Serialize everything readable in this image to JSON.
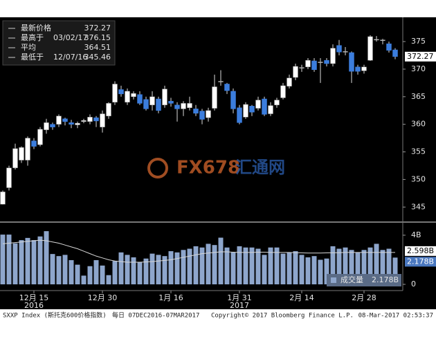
{
  "chart_data": [
    {
      "type": "candlestick",
      "categories": [
        null,
        null,
        null,
        null,
        null,
        "12月 15",
        null,
        null,
        null,
        null,
        null,
        null,
        null,
        null,
        null,
        null,
        "12月 30",
        null,
        null,
        null,
        null,
        null,
        null,
        null,
        null,
        null,
        null,
        "1月 16",
        null,
        null,
        null,
        null,
        null,
        null,
        null,
        null,
        null,
        null,
        "1月 31",
        null,
        null,
        null,
        null,
        null,
        null,
        null,
        null,
        null,
        "2月 14",
        null,
        null,
        null,
        null,
        null,
        null,
        null,
        null,
        null,
        "2月 28",
        null,
        null,
        null,
        null,
        null
      ],
      "category_years": [
        null,
        null,
        null,
        null,
        null,
        "2016",
        null,
        null,
        null,
        null,
        null,
        null,
        null,
        null,
        null,
        null,
        null,
        null,
        null,
        null,
        null,
        null,
        null,
        null,
        null,
        null,
        null,
        null,
        null,
        null,
        null,
        null,
        null,
        null,
        null,
        null,
        null,
        null,
        "2017",
        null,
        null,
        null,
        null,
        null,
        null,
        null,
        null,
        null,
        null,
        null,
        null,
        null,
        null,
        null,
        null,
        null,
        null,
        null,
        null,
        null,
        null,
        null,
        null,
        null
      ],
      "open": [
        345.5,
        348.5,
        352.1,
        353.5,
        353.5,
        357,
        356.3,
        359,
        360,
        360,
        361,
        360.3,
        359.9,
        360.5,
        360.5,
        361.2,
        359.5,
        361.5,
        364,
        366.3,
        364,
        365,
        365.4,
        364.5,
        363.5,
        364.6,
        363.5,
        364.2,
        363.5,
        362.8,
        363,
        362.8,
        362.4,
        361.2,
        362.9,
        367.7,
        367.3,
        366,
        363,
        361.3,
        363.3,
        362.9,
        364.6,
        361.9,
        363.5,
        364.8,
        366.9,
        368.5,
        370.2,
        370.4,
        371.5,
        371.2,
        371.6,
        371,
        374.3,
        373.1,
        373,
        370.4,
        369.7,
        371.6,
        375.3,
        375.2,
        374.6,
        373.5
      ],
      "high": [
        348,
        352.5,
        356.5,
        356,
        357.8,
        357.5,
        359.5,
        361,
        360.3,
        361.8,
        361.2,
        360.8,
        360.5,
        361,
        361.8,
        361.5,
        362.5,
        364,
        367.8,
        367,
        366.5,
        366,
        366,
        365,
        366,
        365,
        367,
        364.8,
        364,
        364.2,
        365,
        363.5,
        362.8,
        363,
        369,
        369.8,
        367.5,
        366.5,
        363.5,
        364,
        363.5,
        365,
        365,
        364,
        364.8,
        367.5,
        369,
        371,
        370.8,
        372,
        372,
        372,
        372,
        374.5,
        375.3,
        374,
        373.2,
        370.8,
        370.8,
        376.15,
        376,
        375.5,
        375,
        373.8
      ],
      "low": [
        345.46,
        348,
        351.8,
        353,
        352.5,
        355.5,
        356,
        358.3,
        359,
        359.5,
        359.8,
        359.3,
        359.3,
        360.2,
        360,
        359.5,
        358.5,
        361,
        363.5,
        365,
        363.5,
        364.5,
        363.5,
        362.5,
        362.5,
        362,
        363,
        363.2,
        360.5,
        361.5,
        362.5,
        361.5,
        360,
        360.5,
        362.5,
        367,
        365.5,
        362,
        360,
        361,
        361.5,
        362.5,
        361.5,
        361.5,
        363,
        364.5,
        366.5,
        368,
        369.5,
        370,
        369.5,
        367.5,
        370.5,
        370.5,
        372.5,
        372.5,
        367.5,
        369,
        369.2,
        371.5,
        375,
        374.5,
        373,
        371.8
      ],
      "close": [
        347.75,
        352.1,
        355.6,
        355.8,
        357.5,
        356,
        359.1,
        360.3,
        359.5,
        361.5,
        360.5,
        360,
        360.2,
        360.7,
        361.3,
        360.6,
        361.9,
        363.8,
        367.3,
        365.5,
        366,
        365.6,
        363.8,
        362.8,
        365,
        362.5,
        366.4,
        363.8,
        362.8,
        363.8,
        363.8,
        362,
        360.9,
        362.5,
        366.8,
        367.8,
        366.1,
        362.8,
        360.3,
        363.6,
        362.2,
        364.4,
        361.8,
        363.4,
        364.4,
        367,
        368.4,
        370.5,
        370.3,
        371.6,
        369.9,
        371.3,
        371,
        373.8,
        373.1,
        373.2,
        369.6,
        369.6,
        370.4,
        375.9,
        375.4,
        375.3,
        373.4,
        372.27
      ],
      "up_color": "#ffffff",
      "down_color": "#3b7ddd",
      "ylim": [
        342.4,
        379.4
      ],
      "yticks": [
        345,
        350,
        355,
        360,
        365,
        370,
        375
      ],
      "legend": [
        {
          "name": "最新价格",
          "value": 372.27
        },
        {
          "name": "最高于",
          "date": "03/02/17",
          "value": 376.15
        },
        {
          "name": "平均",
          "value": 364.51
        },
        {
          "name": "最低于",
          "date": "12/07/16",
          "value": 345.46
        }
      ]
    },
    {
      "type": "bar",
      "series": [
        {
          "name": "成交量",
          "color": "#8ea6cc",
          "values": [
            4.05,
            4.05,
            3.34,
            3.6,
            3.78,
            3.6,
            3.9,
            4.33,
            2.47,
            2.3,
            2.4,
            1.97,
            1.6,
            0.71,
            1.48,
            1.97,
            1.53,
            0.75,
            1.9,
            2.6,
            2.4,
            2.2,
            1.8,
            2.1,
            2.5,
            2.4,
            2.3,
            2.7,
            2.6,
            2.8,
            2.9,
            3.1,
            3.0,
            3.3,
            3.2,
            3.8,
            3.0,
            2.6,
            3.1,
            3.0,
            3.0,
            2.9,
            2.4,
            3.0,
            3.0,
            2.5,
            2.6,
            2.7,
            2.4,
            2.2,
            2.3,
            2.0,
            2.1,
            3.1,
            2.9,
            3.0,
            2.8,
            2.6,
            2.8,
            3.0,
            3.3,
            2.8,
            2.9,
            2.178
          ],
          "last": {
            "value": 2.178,
            "label": "2.178B"
          }
        },
        {
          "type": "line",
          "color": "#d8d8d8",
          "values": [
            3.3,
            3.35,
            3.4,
            3.45,
            3.5,
            3.55,
            3.6,
            3.55,
            3.45,
            3.35,
            3.2,
            3.05,
            2.9,
            2.7,
            2.5,
            2.3,
            2.15,
            2.0,
            1.9,
            1.85,
            1.8,
            1.8,
            1.8,
            1.82,
            1.85,
            1.9,
            1.95,
            2.0,
            2.1,
            2.2,
            2.3,
            2.4,
            2.5,
            2.55,
            2.6,
            2.65,
            2.65,
            2.62,
            2.6,
            2.6,
            2.6,
            2.62,
            2.62,
            2.6,
            2.6,
            2.6,
            2.6,
            2.58,
            2.56,
            2.55,
            2.55,
            2.55,
            2.56,
            2.57,
            2.58,
            2.6,
            2.6,
            2.6,
            2.6,
            2.6,
            2.6,
            2.6,
            2.6,
            2.598
          ],
          "last": {
            "value": 2.598,
            "label": "2.598B"
          }
        }
      ],
      "ylim": [
        0,
        4.9
      ],
      "yticks": [
        {
          "value": 4,
          "label": "4B"
        },
        0
      ]
    }
  ],
  "watermark": {
    "brand": "FX678",
    "name": "汇通网"
  },
  "footer": {
    "ticker": "SXXP Index (斯托克600价格指数)",
    "period": "每日 07DEC2016-07MAR2017",
    "copyright": "Copyright© 2017 Bloomberg Finance L.P.",
    "timestamp": "08-Mar-2017 02:53:37"
  }
}
